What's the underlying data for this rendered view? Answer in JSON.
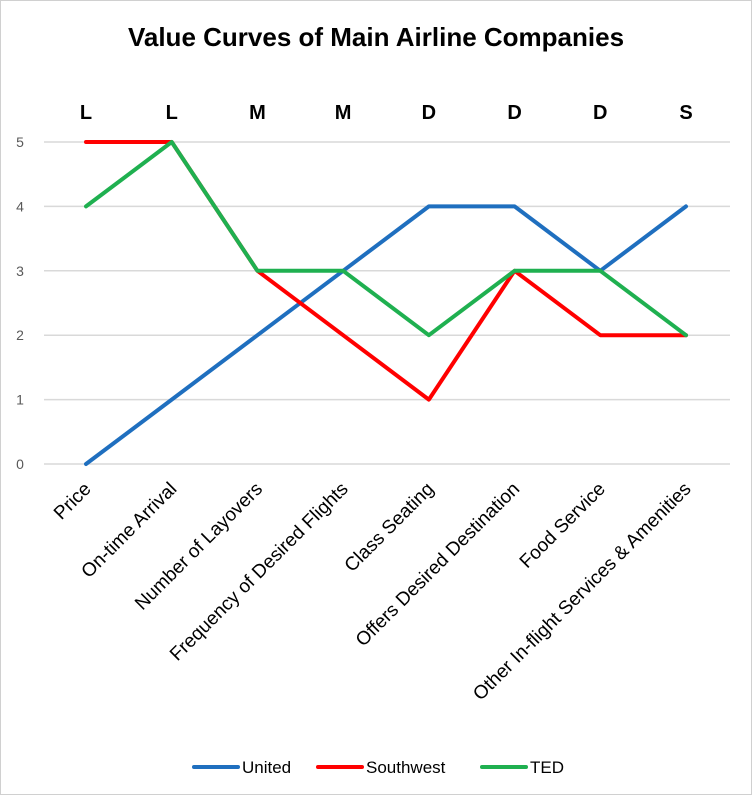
{
  "chart_data": {
    "type": "line",
    "title": "Value Curves of Main Airline Companies",
    "categories": [
      "Price",
      "On-time Arrival",
      "Number of Layovers",
      "Frequency of Desired Flights",
      "Class Seating",
      "Offers Desired Destination",
      "Food Service",
      "Other In-flight Services & Amenities"
    ],
    "top_labels": [
      "L",
      "L",
      "M",
      "M",
      "D",
      "D",
      "D",
      "S"
    ],
    "ylim": [
      0,
      5
    ],
    "yticks": [
      0,
      1,
      2,
      3,
      4,
      5
    ],
    "grid": true,
    "legend_position": "bottom",
    "series": [
      {
        "name": "United",
        "color": "#1f6fbf",
        "values": [
          0,
          1,
          2,
          3,
          4,
          4,
          3,
          4
        ]
      },
      {
        "name": "Southwest",
        "color": "#ff0000",
        "values": [
          5,
          5,
          3,
          2,
          1,
          3,
          2,
          2
        ]
      },
      {
        "name": "TED",
        "color": "#1fb050",
        "values": [
          4,
          5,
          3,
          3,
          2,
          3,
          3,
          2
        ]
      }
    ]
  }
}
